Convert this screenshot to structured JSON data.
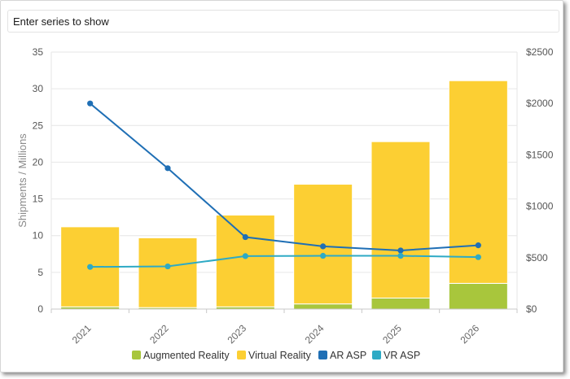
{
  "search": {
    "placeholder": "Enter series to show"
  },
  "chart_data": {
    "type": "bar+line",
    "categories": [
      "2021",
      "2022",
      "2023",
      "2024",
      "2025",
      "2026"
    ],
    "bar_series": [
      {
        "name": "Augmented Reality",
        "values": [
          0.3,
          0.2,
          0.3,
          0.7,
          1.5,
          3.5
        ],
        "color": "#a8c63c"
      },
      {
        "name": "Virtual Reality",
        "values": [
          10.9,
          9.5,
          12.5,
          16.3,
          21.3,
          27.6
        ],
        "color": "#fccf33"
      }
    ],
    "line_series": [
      {
        "name": "AR ASP",
        "values": [
          2000,
          1370,
          700,
          610,
          570,
          620
        ],
        "color": "#1f6fb5"
      },
      {
        "name": "VR ASP",
        "values": [
          410,
          415,
          515,
          518,
          518,
          505
        ],
        "color": "#2eaac5"
      }
    ],
    "ylabel_left": "Shipments / Millions",
    "ylim_left": [
      0,
      35
    ],
    "yticks_left": [
      "0",
      "5",
      "10",
      "15",
      "20",
      "25",
      "30",
      "35"
    ],
    "ylim_right": [
      0,
      2500
    ],
    "yticks_right": [
      "$0",
      "$500",
      "$1000",
      "$1500",
      "$2000",
      "$2500"
    ],
    "grid": true,
    "legend": "bottom-center"
  }
}
